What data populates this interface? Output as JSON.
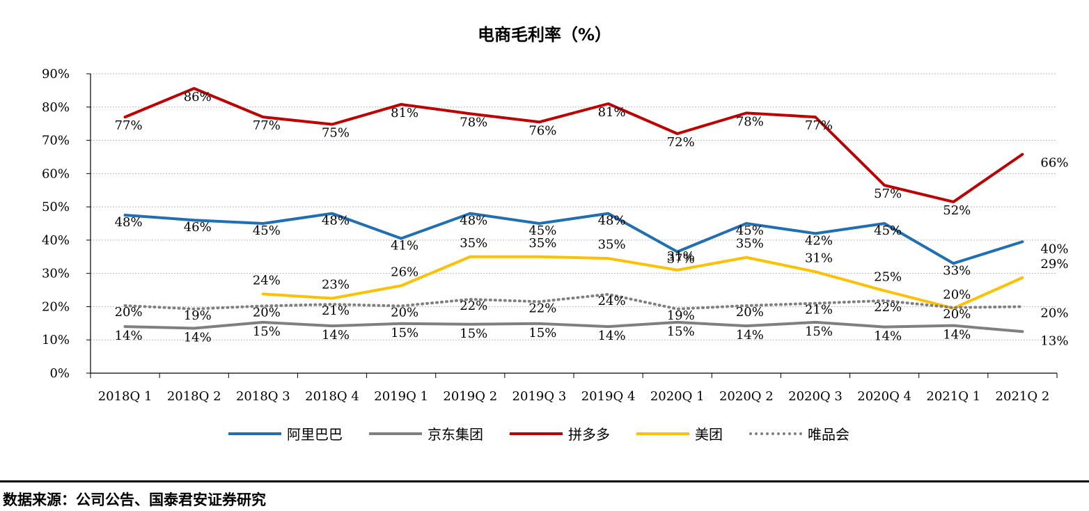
{
  "chart_data": {
    "type": "line",
    "title": "电商毛利率（%）",
    "xlabel": "",
    "ylabel": "",
    "ylim": [
      0,
      90
    ],
    "yticks": [
      "0%",
      "10%",
      "20%",
      "30%",
      "40%",
      "50%",
      "60%",
      "70%",
      "80%",
      "90%"
    ],
    "grid": true,
    "legend_position": "bottom",
    "categories": [
      "2018Q 1",
      "2018Q 2",
      "2018Q 3",
      "2018Q 4",
      "2019Q 1",
      "2019Q 2",
      "2019Q 3",
      "2019Q 4",
      "2020Q 1",
      "2020Q 2",
      "2020Q 3",
      "2020Q 4",
      "2021Q 1",
      "2021Q 2"
    ],
    "series": [
      {
        "name": "阿里巴巴",
        "color": "#1f6fb5",
        "style": "solid",
        "values": [
          47.5,
          46,
          45,
          48,
          40.5,
          48,
          45,
          48,
          36.5,
          45,
          42,
          45,
          33,
          39.5
        ],
        "labels": [
          "48%",
          "46%",
          "45%",
          "48%",
          "41%",
          "48%",
          "45%",
          "48%",
          "37%",
          "45%",
          "42%",
          "45%",
          "33%",
          "40%"
        ]
      },
      {
        "name": "京东集团",
        "color": "#7f7f7f",
        "style": "solid",
        "values": [
          14,
          13.5,
          15.3,
          14.2,
          14.9,
          14.7,
          14.9,
          14,
          15.3,
          14.2,
          15.3,
          13.9,
          14.3,
          12.5
        ],
        "labels": [
          "14%",
          "14%",
          "15%",
          "14%",
          "15%",
          "15%",
          "15%",
          "14%",
          "15%",
          "14%",
          "15%",
          "14%",
          "14%",
          "13%"
        ]
      },
      {
        "name": "拼多多",
        "color": "#c00000",
        "style": "solid",
        "values": [
          77,
          85.6,
          77,
          74.8,
          80.8,
          78,
          75.5,
          81,
          72,
          78.2,
          77,
          56.5,
          51.5,
          65.8
        ],
        "labels": [
          "77%",
          "86%",
          "77%",
          "75%",
          "81%",
          "78%",
          "76%",
          "81%",
          "72%",
          "78%",
          "77%",
          "57%",
          "52%",
          "66%"
        ]
      },
      {
        "name": "美团",
        "color": "#ffc000",
        "style": "solid",
        "values": [
          null,
          null,
          23.8,
          22.5,
          26.3,
          35,
          35,
          34.5,
          31,
          34.8,
          30.5,
          24.8,
          19.5,
          28.7
        ],
        "labels": [
          "",
          "",
          "24%",
          "23%",
          "26%",
          "35%",
          "35%",
          "35%",
          "31%",
          "35%",
          "31%",
          "25%",
          "20%",
          "29%"
        ]
      },
      {
        "name": "唯品会",
        "color": "#7f7f7f",
        "style": "dotted",
        "values": [
          20.3,
          19.3,
          20.2,
          20.7,
          20.2,
          22.2,
          21.5,
          23.7,
          19.3,
          20.3,
          21,
          21.8,
          19.7,
          20
        ],
        "labels": [
          "20%",
          "19%",
          "20%",
          "21%",
          "20%",
          "22%",
          "22%",
          "24%",
          "19%",
          "20%",
          "21%",
          "22%",
          "20%",
          "20%"
        ]
      }
    ]
  },
  "footer": {
    "source": "数据来源：公司公告、国泰君安证券研究"
  }
}
